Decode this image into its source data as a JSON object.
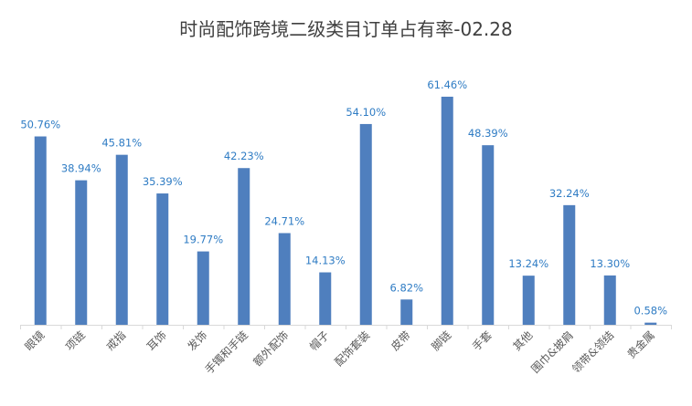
{
  "chart_data": {
    "type": "bar",
    "title": "时尚配饰跨境二级类目订单占有率-02.28",
    "xlabel": "",
    "ylabel": "",
    "categories": [
      "眼镜",
      "项链",
      "戒指",
      "耳饰",
      "发饰",
      "手镯和手链",
      "额外配饰",
      "帽子",
      "配饰套装",
      "皮带",
      "脚链",
      "手套",
      "其他",
      "围巾&披肩",
      "领带&领结",
      "贵金属"
    ],
    "values": [
      50.76,
      38.94,
      45.81,
      35.39,
      19.77,
      42.23,
      24.71,
      14.13,
      54.1,
      6.82,
      61.46,
      48.39,
      13.24,
      32.24,
      13.3,
      0.58
    ],
    "data_labels": [
      "50.76%",
      "38.94%",
      "45.81%",
      "35.39%",
      "19.77%",
      "42.23%",
      "24.71%",
      "14.13%",
      "54.10%",
      "6.82%",
      "61.46%",
      "48.39%",
      "13.24%",
      "32.24%",
      "13.30%",
      "0.58%"
    ],
    "ylim": [
      0,
      61.46
    ],
    "grid": false,
    "legend": "none",
    "colors": {
      "bar": "#4f7fbe",
      "data_label": "#2f7cc4",
      "axis": "#d9d9d9",
      "title": "#404040",
      "tick": "#595959"
    }
  }
}
